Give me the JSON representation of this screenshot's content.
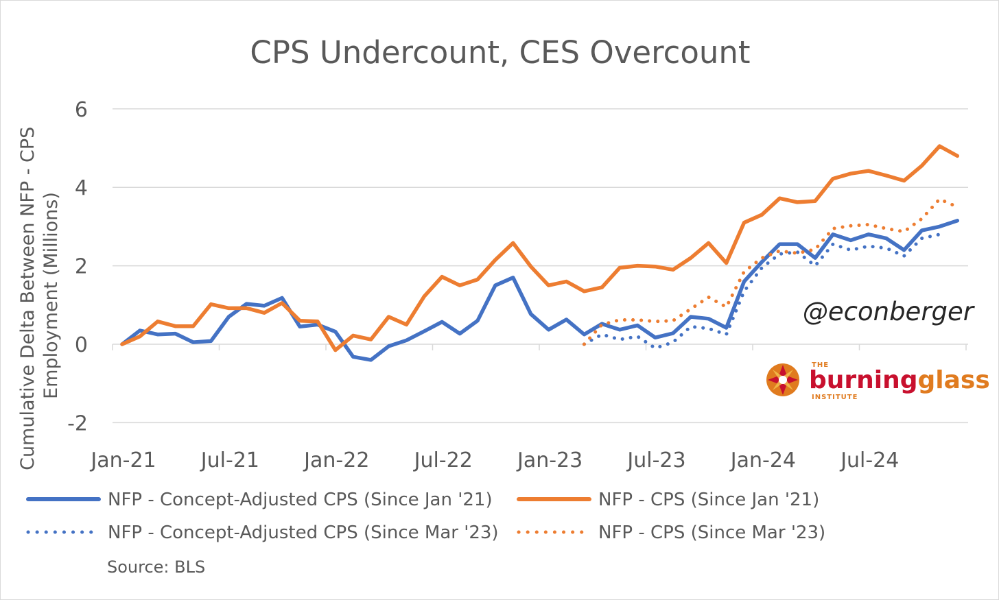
{
  "chart_data": {
    "type": "line",
    "title": "CPS Undercount, CES Overcount",
    "ylabel": "Cumulative Delta Between NFP - CPS Employment (Millions)",
    "ylim": [
      -2,
      6
    ],
    "yticks": [
      -2,
      0,
      2,
      4,
      6
    ],
    "x_tick_labels": [
      "Jan-21",
      "Jul-21",
      "Jan-22",
      "Jul-22",
      "Jan-23",
      "Jul-23",
      "Jan-24",
      "Jul-24"
    ],
    "x_months": [
      "Jan-21",
      "Feb-21",
      "Mar-21",
      "Apr-21",
      "May-21",
      "Jun-21",
      "Jul-21",
      "Aug-21",
      "Sep-21",
      "Oct-21",
      "Nov-21",
      "Dec-21",
      "Jan-22",
      "Feb-22",
      "Mar-22",
      "Apr-22",
      "May-22",
      "Jun-22",
      "Jul-22",
      "Aug-22",
      "Sep-22",
      "Oct-22",
      "Nov-22",
      "Dec-22",
      "Jan-23",
      "Feb-23",
      "Mar-23",
      "Apr-23",
      "May-23",
      "Jun-23",
      "Jul-23",
      "Aug-23",
      "Sep-23",
      "Oct-23",
      "Nov-23",
      "Dec-23",
      "Jan-24",
      "Feb-24",
      "Mar-24",
      "Apr-24",
      "May-24",
      "Jun-24",
      "Jul-24",
      "Aug-24",
      "Sep-24",
      "Oct-24",
      "Nov-24",
      "Dec-24"
    ],
    "grid": true,
    "legend_position": "bottom",
    "series": [
      {
        "name": "NFP - Concept-Adjusted CPS (Since Jan '21)",
        "color": "#4472c4",
        "style": "solid",
        "start_index": 0,
        "values": [
          0,
          0.35,
          0.25,
          0.27,
          0.05,
          0.08,
          0.7,
          1.03,
          0.98,
          1.18,
          0.45,
          0.5,
          0.32,
          -0.32,
          -0.4,
          -0.05,
          0.1,
          0.33,
          0.57,
          0.27,
          0.6,
          1.5,
          1.7,
          0.77,
          0.37,
          0.63,
          0.25,
          0.52,
          0.37,
          0.48,
          0.17,
          0.28,
          0.7,
          0.65,
          0.42,
          1.6,
          2.1,
          2.55,
          2.55,
          2.2,
          2.8,
          2.65,
          2.8,
          2.7,
          2.4,
          2.9,
          3.0,
          3.15
        ]
      },
      {
        "name": "NFP - CPS (Since Jan '21)",
        "color": "#ed7d31",
        "style": "solid",
        "start_index": 0,
        "values": [
          0,
          0.2,
          0.58,
          0.46,
          0.46,
          1.02,
          0.92,
          0.92,
          0.8,
          1.05,
          0.6,
          0.58,
          -0.15,
          0.22,
          0.12,
          0.7,
          0.5,
          1.22,
          1.72,
          1.5,
          1.65,
          2.15,
          2.58,
          1.98,
          1.5,
          1.6,
          1.35,
          1.45,
          1.95,
          2.0,
          1.98,
          1.9,
          2.2,
          2.58,
          2.07,
          3.1,
          3.3,
          3.72,
          3.62,
          3.65,
          4.22,
          4.35,
          4.42,
          4.3,
          4.17,
          4.55,
          5.05,
          4.8
        ]
      },
      {
        "name": "NFP - Concept-Adjusted CPS (Since Mar '23)",
        "color": "#4472c4",
        "style": "dotted",
        "start_index": 26,
        "values": [
          0,
          0.25,
          0.12,
          0.2,
          -0.1,
          0.05,
          0.45,
          0.4,
          0.25,
          1.35,
          1.95,
          2.3,
          2.35,
          2.0,
          2.55,
          2.4,
          2.5,
          2.45,
          2.25,
          2.7,
          2.8
        ]
      },
      {
        "name": "NFP - CPS (Since Mar '23)",
        "color": "#ed7d31",
        "style": "dotted",
        "start_index": 26,
        "values": [
          0,
          0.5,
          0.62,
          0.62,
          0.58,
          0.6,
          0.9,
          1.2,
          0.95,
          1.85,
          2.2,
          2.38,
          2.32,
          2.42,
          2.95,
          3.02,
          3.05,
          2.95,
          2.87,
          3.2,
          3.7,
          3.5
        ]
      }
    ],
    "annotations": [
      "@econberger"
    ],
    "source": "Source: BLS"
  },
  "logo": {
    "small": "THE",
    "brand_part1": "burning",
    "brand_part2": "glass",
    "institute": "INSTITUTE",
    "color_part1": "#c8102e",
    "color_part2": "#e07b1f"
  }
}
